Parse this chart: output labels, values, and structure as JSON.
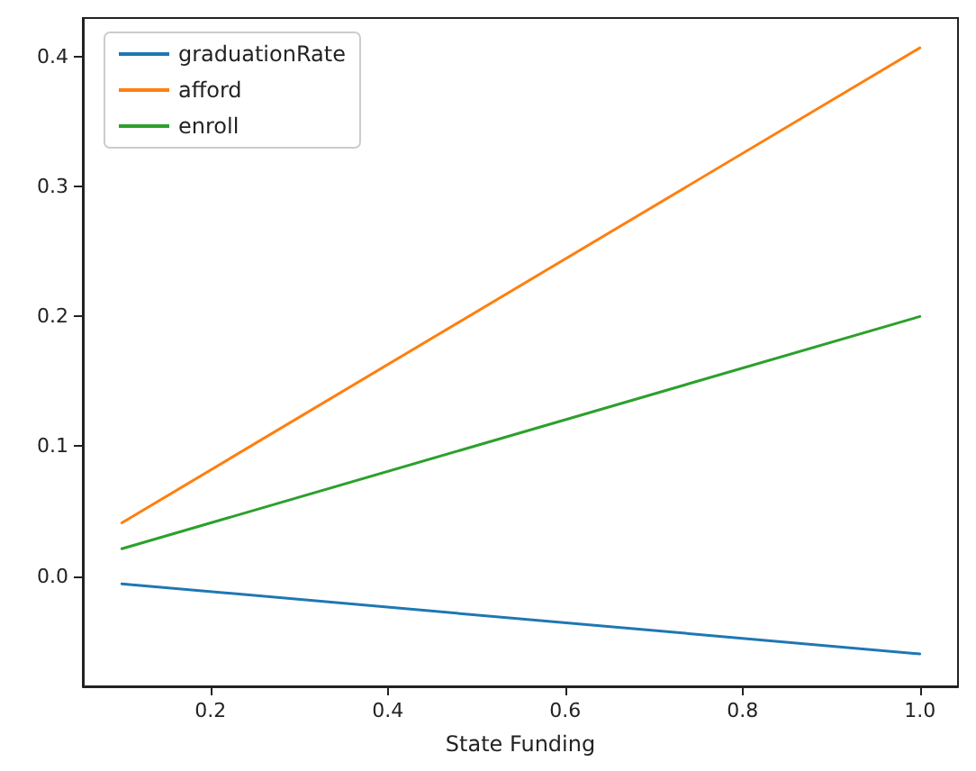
{
  "chart_data": {
    "type": "line",
    "xlabel": "State Funding",
    "x": [
      0.1,
      1.0
    ],
    "series": [
      {
        "name": "graduationRate",
        "color": "#1f77b4",
        "values": [
          -0.006,
          -0.06
        ]
      },
      {
        "name": "afford",
        "color": "#ff7f0e",
        "values": [
          0.041,
          0.407
        ]
      },
      {
        "name": "enroll",
        "color": "#2ca02c",
        "values": [
          0.021,
          0.2
        ]
      }
    ],
    "xlim": [
      0.056,
      1.043
    ],
    "ylim": [
      -0.085,
      0.43
    ],
    "xticks": [
      {
        "value": 0.2,
        "label": "0.2"
      },
      {
        "value": 0.4,
        "label": "0.4"
      },
      {
        "value": 0.6,
        "label": "0.6"
      },
      {
        "value": 0.8,
        "label": "0.8"
      },
      {
        "value": 1.0,
        "label": "1.0"
      }
    ],
    "yticks": [
      {
        "value": 0,
        "label": "0.0"
      },
      {
        "value": 0.1,
        "label": "0.1"
      },
      {
        "value": 0.2,
        "label": "0.2"
      },
      {
        "value": 0.3,
        "label": "0.3"
      },
      {
        "value": 0.4,
        "label": "0.4"
      }
    ],
    "grid": false,
    "legend": "top left",
    "marker": "none",
    "line_style": "solid"
  }
}
